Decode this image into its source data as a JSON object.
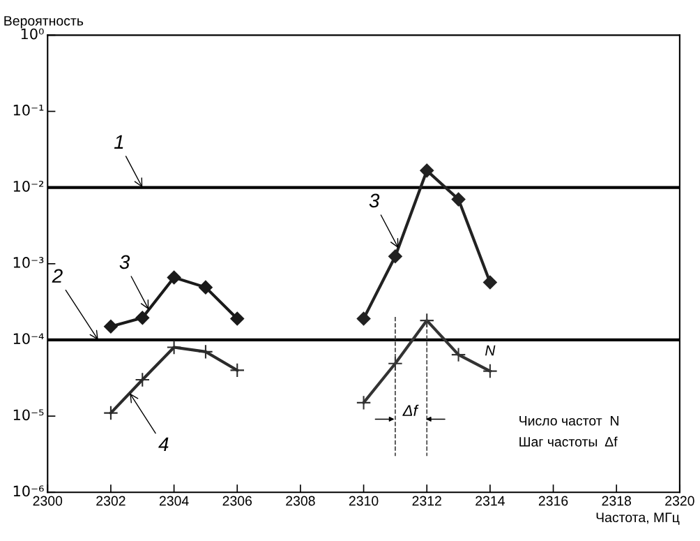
{
  "chart_data": {
    "type": "line",
    "xlabel": "Частота, МГц",
    "ylabel": "Вероятность",
    "log": "y",
    "grid": false,
    "xlim": [
      2300,
      2320
    ],
    "xticks": [
      2300,
      2302,
      2304,
      2306,
      2308,
      2310,
      2312,
      2314,
      2316,
      2318,
      2320
    ],
    "ylim": [
      1e-06,
      1
    ],
    "yticks": [
      {
        "value": 1e-06,
        "label": "10⁻⁶"
      },
      {
        "value": 1e-05,
        "label": "10⁻⁵"
      },
      {
        "value": 0.0001,
        "label": "10⁻⁴"
      },
      {
        "value": 0.001,
        "label": "10⁻³"
      },
      {
        "value": 0.01,
        "label": "10⁻²"
      },
      {
        "value": 0.1,
        "label": "10⁻¹"
      },
      {
        "value": 1,
        "label": "10⁰"
      }
    ],
    "series": [
      {
        "color": "#1a1a1a",
        "marker": "diamond",
        "x": [
          2302,
          2303,
          2304,
          2305,
          2306
        ],
        "values": [
          0.00015,
          0.000195,
          0.00066,
          0.00049,
          0.00019
        ]
      },
      {
        "color": "#222222",
        "marker": "diamond",
        "x": [
          2310,
          2311,
          2312,
          2313,
          2314
        ],
        "values": [
          0.00019,
          0.00125,
          0.0167,
          0.007,
          0.00057
        ]
      },
      {
        "color": "#2b2b2b",
        "marker": "cross",
        "x": [
          2302,
          2303,
          2304,
          2305,
          2306
        ],
        "values": [
          1.1e-05,
          3e-05,
          8e-05,
          7e-05,
          4e-05
        ]
      },
      {
        "color": "#333333",
        "marker": "cross",
        "x": [
          2310,
          2311,
          2312,
          2313,
          2314
        ],
        "values": [
          1.5e-05,
          4.9e-05,
          0.00018,
          6.4e-05,
          3.9e-05
        ]
      },
      {
        "color": "#3c3c3c",
        "marker": "none",
        "line_style": "dashed",
        "x": [
          2311,
          2311
        ],
        "values": [
          0.0002,
          3e-06
        ]
      },
      {
        "color": "#444444",
        "marker": "none",
        "line_style": "dashed",
        "x": [
          2312,
          2312
        ],
        "values": [
          0.0002,
          3e-06
        ]
      }
    ],
    "ref_lines": [
      {
        "axis": "y",
        "value": 0.01,
        "color": "#000000"
      },
      {
        "axis": "y",
        "value": 0.0001,
        "color": "#000000"
      }
    ],
    "annotations": [
      {
        "text": "3",
        "x": 2303.2,
        "y": 0.00025
      },
      {
        "text": "3",
        "x": 2311.1,
        "y": 0.0016
      },
      {
        "text": "4",
        "x": 2302.6,
        "y": 2e-05
      },
      {
        "text": "N",
        "x": 2314,
        "y": 3.9e-05
      },
      {
        "text": "1",
        "x": 2303,
        "y": 0.01
      },
      {
        "text": "2",
        "x": 2301.6,
        "y": 0.0001
      },
      "Δf",
      "Число частот  N",
      "Шаг частоты  Δf"
    ]
  }
}
